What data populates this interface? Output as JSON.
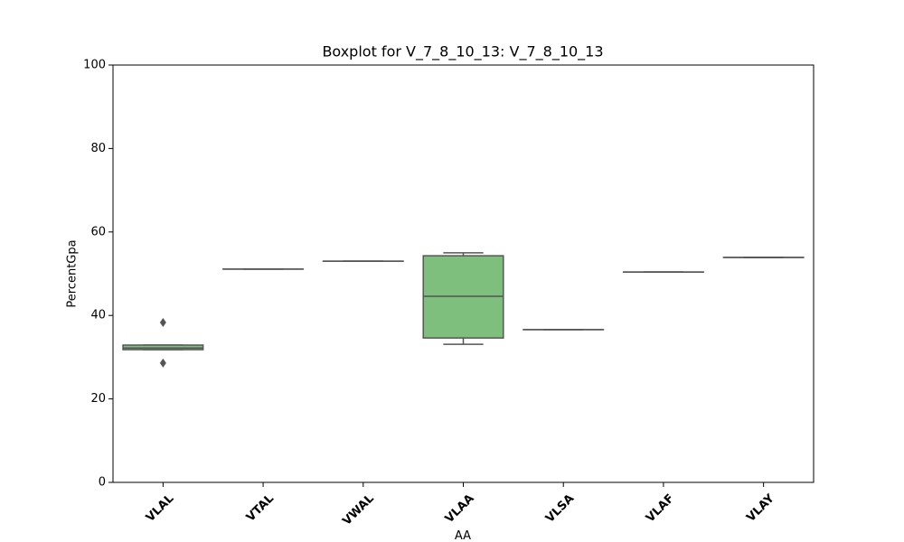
{
  "chart_data": {
    "type": "box",
    "title": "Boxplot for V_7_8_10_13: V_7_8_10_13",
    "x_label": "AA",
    "y_label": "PercentGpa",
    "categories": [
      "VLAL",
      "VTAL",
      "VWAL",
      "VLAA",
      "VLSA",
      "VLAF",
      "VLAY"
    ],
    "color": "#7fbf7e",
    "line_color": "#555555",
    "boxes": [
      {
        "whislo": 31.8,
        "q1": 31.8,
        "med": 32.2,
        "q3": 32.9,
        "whishi": 32.9,
        "fliers": [
          38.3,
          28.6
        ]
      },
      {
        "whislo": 51.1,
        "q1": 51.1,
        "med": 51.1,
        "q3": 51.1,
        "whishi": 51.1,
        "fliers": []
      },
      {
        "whislo": 53.0,
        "q1": 53.0,
        "med": 53.0,
        "q3": 53.0,
        "whishi": 53.0,
        "fliers": []
      },
      {
        "whislo": 33.1,
        "q1": 34.6,
        "med": 44.6,
        "q3": 54.3,
        "whishi": 55.0,
        "fliers": []
      },
      {
        "whislo": 36.6,
        "q1": 36.6,
        "med": 36.6,
        "q3": 36.6,
        "whishi": 36.6,
        "fliers": []
      },
      {
        "whislo": 50.4,
        "q1": 50.4,
        "med": 50.4,
        "q3": 50.4,
        "whishi": 50.4,
        "fliers": []
      },
      {
        "whislo": 53.9,
        "q1": 53.9,
        "med": 53.9,
        "q3": 53.9,
        "whishi": 53.9,
        "fliers": []
      }
    ],
    "ylim": [
      0,
      100
    ],
    "yticks": [
      0,
      20,
      40,
      60,
      80,
      100
    ]
  }
}
